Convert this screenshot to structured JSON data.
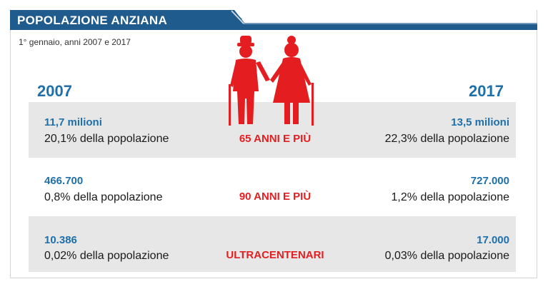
{
  "header": {
    "title": "POPOLAZIONE ANZIANA"
  },
  "subtitle": "1° gennaio, anni 2007 e 2017",
  "columns": {
    "left_year": "2007",
    "right_year": "2017"
  },
  "rows": [
    {
      "category": "65 ANNI E PIÙ",
      "left_value": "11,7 milioni",
      "left_pct": "20,1% della popolazione",
      "right_value": "13,5 milioni",
      "right_pct": "22,3% della popolazione"
    },
    {
      "category": "90 ANNI E PIÙ",
      "left_value": "466.700",
      "left_pct": "0,8% della popolazione",
      "right_value": "727.000",
      "right_pct": "1,2% della popolazione"
    },
    {
      "category": "ULTRACENTENARI",
      "left_value": "10.386",
      "left_pct": "0,02% della popolazione",
      "right_value": "17.000",
      "right_pct": "0,03% della popolazione"
    }
  ],
  "colors": {
    "header": "#1f5b8c",
    "value": "#1f6fa9",
    "accent": "#e41e20",
    "band": "#e7e7e7"
  },
  "icons": {
    "illustration": "elderly-couple-icon"
  }
}
